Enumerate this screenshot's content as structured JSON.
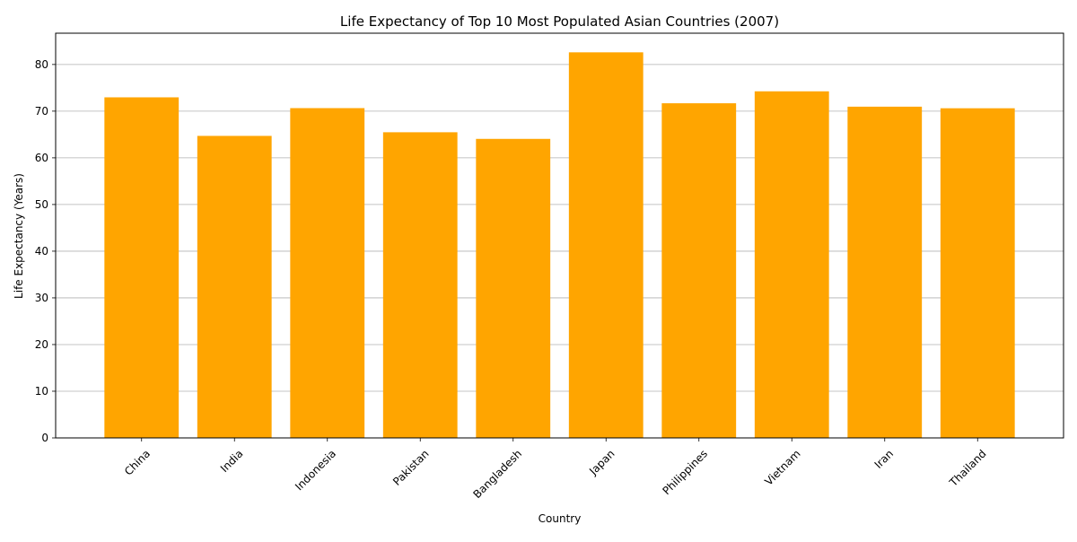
{
  "chart_data": {
    "type": "bar",
    "title": "Life Expectancy of Top 10 Most Populated Asian Countries (2007)",
    "xlabel": "Country",
    "ylabel": "Life Expectancy (Years)",
    "categories": [
      "China",
      "India",
      "Indonesia",
      "Pakistan",
      "Bangladesh",
      "Japan",
      "Philippines",
      "Vietnam",
      "Iran",
      "Thailand"
    ],
    "values": [
      72.96,
      64.7,
      70.65,
      65.48,
      64.06,
      82.6,
      71.69,
      74.25,
      70.96,
      70.62
    ],
    "ylim": [
      0,
      86.7
    ],
    "yticks": [
      0,
      10,
      20,
      30,
      40,
      50,
      60,
      70,
      80
    ],
    "bar_color": "#ffa500",
    "grid": "y-axis",
    "legend": "none"
  }
}
